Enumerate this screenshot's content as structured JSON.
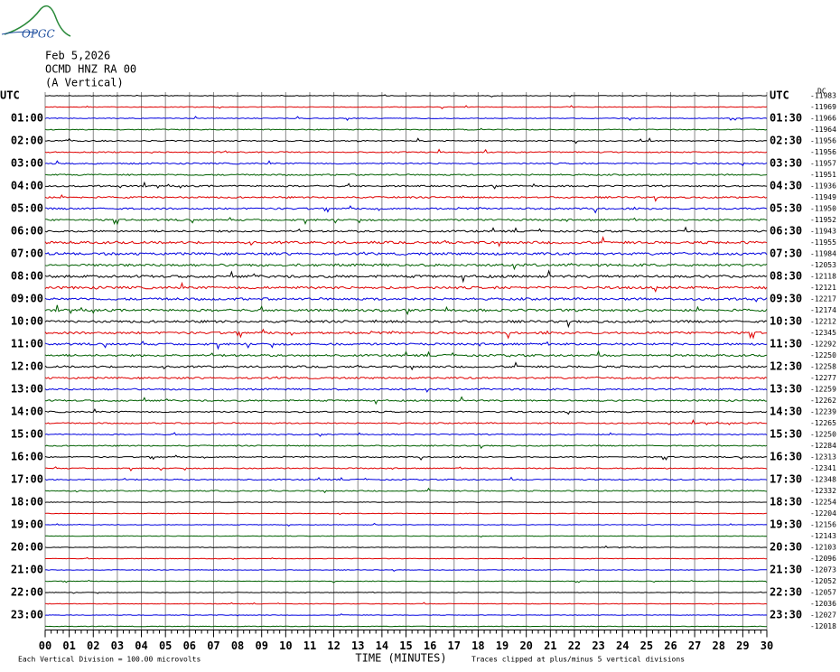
{
  "header": {
    "logo": "OPGC",
    "date": "Feb 5,2026",
    "station": "OCMD HNZ RA 00",
    "component": "(A Vertical)",
    "dc_label": "DC"
  },
  "left_labels": [
    "UTC",
    "01:00",
    "02:00",
    "03:00",
    "04:00",
    "05:00",
    "06:00",
    "07:00",
    "08:00",
    "09:00",
    "10:00",
    "11:00",
    "12:00",
    "13:00",
    "14:00",
    "15:00",
    "16:00",
    "17:00",
    "18:00",
    "19:00",
    "20:00",
    "21:00",
    "22:00",
    "23:00"
  ],
  "right_labels": [
    "UTC",
    "01:30",
    "02:30",
    "03:30",
    "04:30",
    "05:30",
    "06:30",
    "07:30",
    "08:30",
    "09:30",
    "10:30",
    "11:30",
    "12:30",
    "13:30",
    "14:30",
    "15:30",
    "16:30",
    "17:30",
    "18:30",
    "19:30",
    "20:30",
    "21:30",
    "22:30",
    "23:30"
  ],
  "offsets": [
    "-11983",
    "-11969",
    "-11966",
    "-11964",
    "-11956",
    "-11956",
    "-11957",
    "-11951",
    "-11936",
    "-11949",
    "-11950",
    "-11952",
    "-11943",
    "-11955",
    "-11984",
    "-12053",
    "-12118",
    "-12121",
    "-12217",
    "-12174",
    "-12212",
    "-12345",
    "-12292",
    "-12250",
    "-12258",
    "-12277",
    "-12259",
    "-12262",
    "-12239",
    "-12265",
    "-12250",
    "-12284",
    "-12313",
    "-12341",
    "-12348",
    "-12332",
    "-12254",
    "-12204",
    "-12156",
    "-12143",
    "-12103",
    "-12096",
    "-12073",
    "-12052",
    "-12057",
    "-12036",
    "-12027",
    "-12018"
  ],
  "trace_colors": [
    "#000000",
    "#e00000",
    "#0000e0",
    "#006000"
  ],
  "x_axis": {
    "labels": [
      "00",
      "01",
      "02",
      "03",
      "04",
      "05",
      "06",
      "07",
      "08",
      "09",
      "10",
      "11",
      "12",
      "13",
      "14",
      "15",
      "16",
      "17",
      "18",
      "19",
      "20",
      "21",
      "22",
      "23",
      "24",
      "25",
      "26",
      "27",
      "28",
      "29",
      "30"
    ],
    "title": "TIME (MINUTES)"
  },
  "footer": {
    "scale": "Each Vertical Division =  100.00 microvolts",
    "clip": "Traces clipped at plus/minus 5 vertical divisions"
  }
}
